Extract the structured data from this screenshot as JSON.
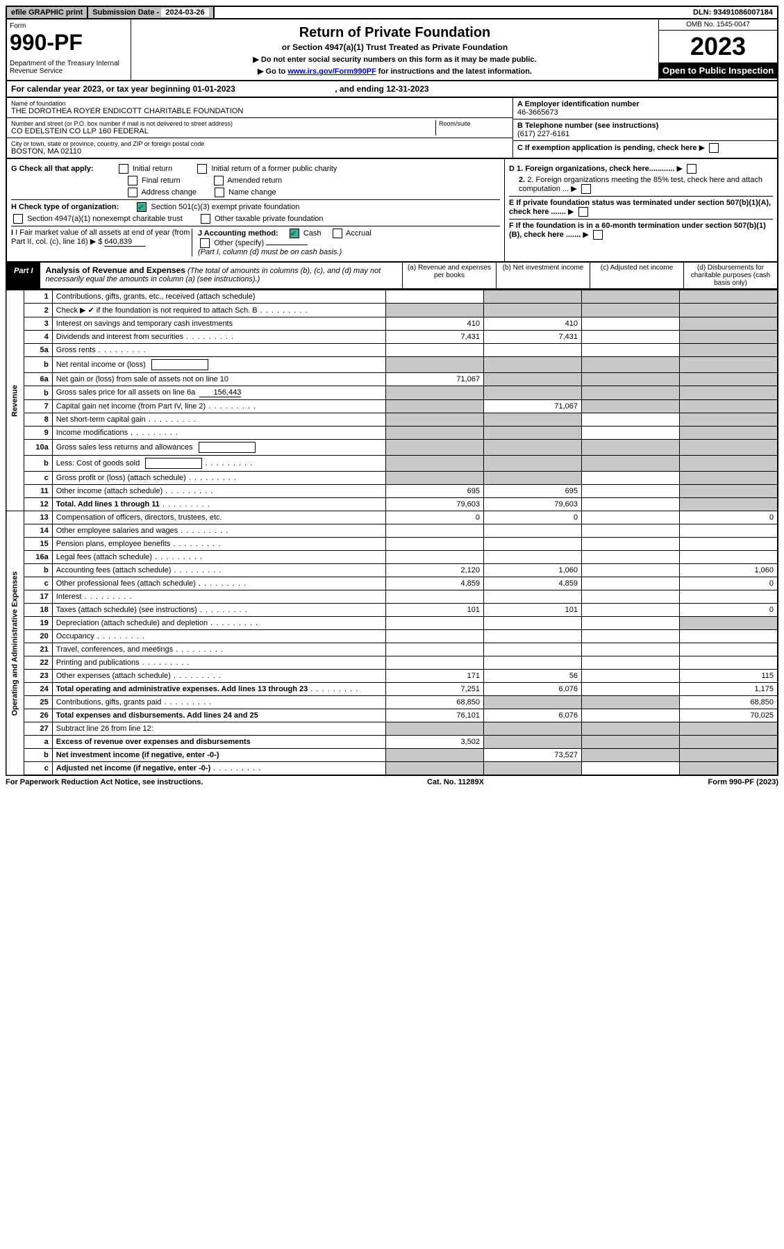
{
  "topbar": {
    "efile": "efile GRAPHIC print",
    "subdate_label": "Submission Date - ",
    "subdate": "2024-03-26",
    "dln_label": "DLN: ",
    "dln": "93491086007184"
  },
  "header": {
    "form_label": "Form",
    "form_num": "990-PF",
    "dept": "Department of the Treasury\nInternal Revenue Service",
    "title": "Return of Private Foundation",
    "subtitle": "or Section 4947(a)(1) Trust Treated as Private Foundation",
    "note1": "▶ Do not enter social security numbers on this form as it may be made public.",
    "note2_pre": "▶ Go to ",
    "note2_link": "www.irs.gov/Form990PF",
    "note2_post": " for instructions and the latest information.",
    "omb": "OMB No. 1545-0047",
    "year": "2023",
    "open": "Open to Public Inspection"
  },
  "calyear": {
    "text_pre": "For calendar year 2023, or tax year beginning ",
    "begin": "01-01-2023",
    "mid": " , and ending ",
    "end": "12-31-2023"
  },
  "info": {
    "name_label": "Name of foundation",
    "name": "THE DOROTHEA ROYER ENDICOTT CHARITABLE FOUNDATION",
    "addr_label": "Number and street (or P.O. box number if mail is not delivered to street address)",
    "addr": "CO EDELSTEIN CO LLP 160 FEDERAL",
    "room_label": "Room/suite",
    "city_label": "City or town, state or province, country, and ZIP or foreign postal code",
    "city": "BOSTON, MA  02110",
    "ein_label": "A Employer identification number",
    "ein": "46-3665673",
    "phone_label": "B Telephone number (see instructions)",
    "phone": "(617) 227-6161",
    "c_label": "C If exemption application is pending, check here"
  },
  "g": {
    "label": "G Check all that apply:",
    "initial": "Initial return",
    "initial_former": "Initial return of a former public charity",
    "final": "Final return",
    "amended": "Amended return",
    "addr_change": "Address change",
    "name_change": "Name change",
    "h_label": "H Check type of organization:",
    "h_501c3": "Section 501(c)(3) exempt private foundation",
    "h_4947": "Section 4947(a)(1) nonexempt charitable trust",
    "h_other": "Other taxable private foundation",
    "i_label": "I Fair market value of all assets at end of year (from Part II, col. (c), line 16) ▶ $",
    "i_val": "640,839",
    "j_label": "J Accounting method:",
    "j_cash": "Cash",
    "j_accrual": "Accrual",
    "j_other": "Other (specify)",
    "j_note": "(Part I, column (d) must be on cash basis.)",
    "d1": "D 1. Foreign organizations, check here............",
    "d2": "2. Foreign organizations meeting the 85% test, check here and attach computation ...",
    "e": "E  If private foundation status was terminated under section 507(b)(1)(A), check here .......",
    "f": "F  If the foundation is in a 60-month termination under section 507(b)(1)(B), check here .......",
    "arrow": "▶"
  },
  "part1": {
    "label": "Part I",
    "title": "Analysis of Revenue and Expenses",
    "desc": "(The total of amounts in columns (b), (c), and (d) may not necessarily equal the amounts in column (a) (see instructions).)",
    "col_a": "(a) Revenue and expenses per books",
    "col_b": "(b) Net investment income",
    "col_c": "(c) Adjusted net income",
    "col_d": "(d) Disbursements for charitable purposes (cash basis only)"
  },
  "side_labels": {
    "revenue": "Revenue",
    "expenses": "Operating and Administrative Expenses"
  },
  "rows": [
    {
      "n": "1",
      "label": "Contributions, gifts, grants, etc., received (attach schedule)",
      "a": "",
      "b": "shade",
      "c": "shade",
      "d": "shade"
    },
    {
      "n": "2",
      "label": "Check ▶ ✔ if the foundation is not required to attach Sch. B",
      "dots": true,
      "a": "shade",
      "b": "shade",
      "c": "shade",
      "d": "shade"
    },
    {
      "n": "3",
      "label": "Interest on savings and temporary cash investments",
      "a": "410",
      "b": "410",
      "c": "",
      "d": "shade"
    },
    {
      "n": "4",
      "label": "Dividends and interest from securities",
      "dots": true,
      "a": "7,431",
      "b": "7,431",
      "c": "",
      "d": "shade"
    },
    {
      "n": "5a",
      "label": "Gross rents",
      "dots": true,
      "a": "",
      "b": "",
      "c": "",
      "d": "shade"
    },
    {
      "n": "b",
      "label": "Net rental income or (loss)",
      "inline": true,
      "a": "shade",
      "b": "shade",
      "c": "shade",
      "d": "shade"
    },
    {
      "n": "6a",
      "label": "Net gain or (loss) from sale of assets not on line 10",
      "a": "71,067",
      "b": "shade",
      "c": "shade",
      "d": "shade"
    },
    {
      "n": "b",
      "label": "Gross sales price for all assets on line 6a",
      "inline_val": "156,443",
      "a": "shade",
      "b": "shade",
      "c": "shade",
      "d": "shade"
    },
    {
      "n": "7",
      "label": "Capital gain net income (from Part IV, line 2)",
      "dots": true,
      "a": "shade",
      "b": "71,067",
      "c": "shade",
      "d": "shade"
    },
    {
      "n": "8",
      "label": "Net short-term capital gain",
      "dots": true,
      "a": "shade",
      "b": "shade",
      "c": "",
      "d": "shade"
    },
    {
      "n": "9",
      "label": "Income modifications",
      "dots": true,
      "a": "shade",
      "b": "shade",
      "c": "",
      "d": "shade"
    },
    {
      "n": "10a",
      "label": "Gross sales less returns and allowances",
      "inline": true,
      "a": "shade",
      "b": "shade",
      "c": "shade",
      "d": "shade"
    },
    {
      "n": "b",
      "label": "Less: Cost of goods sold",
      "dots": true,
      "inline": true,
      "a": "shade",
      "b": "shade",
      "c": "shade",
      "d": "shade"
    },
    {
      "n": "c",
      "label": "Gross profit or (loss) (attach schedule)",
      "dots": true,
      "a": "shade",
      "b": "shade",
      "c": "",
      "d": "shade"
    },
    {
      "n": "11",
      "label": "Other income (attach schedule)",
      "dots": true,
      "a": "695",
      "b": "695",
      "c": "",
      "d": "shade"
    },
    {
      "n": "12",
      "label": "Total. Add lines 1 through 11",
      "bold": true,
      "dots": true,
      "a": "79,603",
      "b": "79,603",
      "c": "",
      "d": "shade"
    },
    {
      "n": "13",
      "label": "Compensation of officers, directors, trustees, etc.",
      "a": "0",
      "b": "0",
      "c": "",
      "d": "0"
    },
    {
      "n": "14",
      "label": "Other employee salaries and wages",
      "dots": true,
      "a": "",
      "b": "",
      "c": "",
      "d": ""
    },
    {
      "n": "15",
      "label": "Pension plans, employee benefits",
      "dots": true,
      "a": "",
      "b": "",
      "c": "",
      "d": ""
    },
    {
      "n": "16a",
      "label": "Legal fees (attach schedule)",
      "dots": true,
      "a": "",
      "b": "",
      "c": "",
      "d": ""
    },
    {
      "n": "b",
      "label": "Accounting fees (attach schedule)",
      "dots": true,
      "a": "2,120",
      "b": "1,060",
      "c": "",
      "d": "1,060"
    },
    {
      "n": "c",
      "label": "Other professional fees (attach schedule)",
      "dots": true,
      "a": "4,859",
      "b": "4,859",
      "c": "",
      "d": "0"
    },
    {
      "n": "17",
      "label": "Interest",
      "dots": true,
      "a": "",
      "b": "",
      "c": "",
      "d": ""
    },
    {
      "n": "18",
      "label": "Taxes (attach schedule) (see instructions)",
      "dots": true,
      "a": "101",
      "b": "101",
      "c": "",
      "d": "0"
    },
    {
      "n": "19",
      "label": "Depreciation (attach schedule) and depletion",
      "dots": true,
      "a": "",
      "b": "",
      "c": "",
      "d": "shade"
    },
    {
      "n": "20",
      "label": "Occupancy",
      "dots": true,
      "a": "",
      "b": "",
      "c": "",
      "d": ""
    },
    {
      "n": "21",
      "label": "Travel, conferences, and meetings",
      "dots": true,
      "a": "",
      "b": "",
      "c": "",
      "d": ""
    },
    {
      "n": "22",
      "label": "Printing and publications",
      "dots": true,
      "a": "",
      "b": "",
      "c": "",
      "d": ""
    },
    {
      "n": "23",
      "label": "Other expenses (attach schedule)",
      "dots": true,
      "a": "171",
      "b": "56",
      "c": "",
      "d": "115"
    },
    {
      "n": "24",
      "label": "Total operating and administrative expenses. Add lines 13 through 23",
      "bold": true,
      "dots": true,
      "a": "7,251",
      "b": "6,076",
      "c": "",
      "d": "1,175"
    },
    {
      "n": "25",
      "label": "Contributions, gifts, grants paid",
      "dots": true,
      "a": "68,850",
      "b": "shade",
      "c": "shade",
      "d": "68,850"
    },
    {
      "n": "26",
      "label": "Total expenses and disbursements. Add lines 24 and 25",
      "bold": true,
      "a": "76,101",
      "b": "6,076",
      "c": "",
      "d": "70,025"
    },
    {
      "n": "27",
      "label": "Subtract line 26 from line 12:",
      "a": "shade",
      "b": "shade",
      "c": "shade",
      "d": "shade"
    },
    {
      "n": "a",
      "label": "Excess of revenue over expenses and disbursements",
      "bold": true,
      "a": "3,502",
      "b": "shade",
      "c": "shade",
      "d": "shade"
    },
    {
      "n": "b",
      "label": "Net investment income (if negative, enter -0-)",
      "bold": true,
      "a": "shade",
      "b": "73,527",
      "c": "shade",
      "d": "shade"
    },
    {
      "n": "c",
      "label": "Adjusted net income (if negative, enter -0-)",
      "bold": true,
      "dots": true,
      "a": "shade",
      "b": "shade",
      "c": "",
      "d": "shade"
    }
  ],
  "footer": {
    "left": "For Paperwork Reduction Act Notice, see instructions.",
    "mid": "Cat. No. 11289X",
    "right": "Form 990-PF (2023)"
  }
}
